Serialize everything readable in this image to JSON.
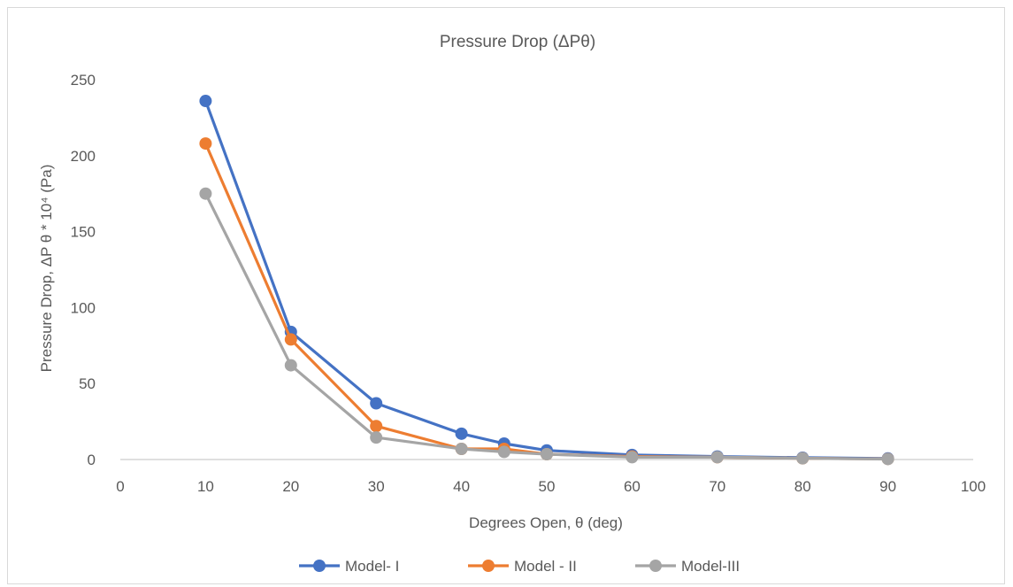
{
  "chart_data": {
    "type": "line",
    "title": "Pressure Drop (ΔPθ)",
    "xlabel": "Degrees Open, θ (deg)",
    "ylabel": "Pressure Drop, ΔP θ * 10⁴ (Pa)",
    "xlim": [
      0,
      100
    ],
    "ylim": [
      0,
      250
    ],
    "x_ticks": [
      0,
      10,
      20,
      30,
      40,
      50,
      60,
      70,
      80,
      90,
      100
    ],
    "y_ticks": [
      0,
      50,
      100,
      150,
      200,
      250
    ],
    "grid": false,
    "legend_position": "bottom",
    "x": [
      10,
      20,
      30,
      40,
      45,
      50,
      60,
      70,
      80,
      90
    ],
    "series": [
      {
        "name": "Model- I",
        "color": "#4472c4",
        "values": [
          236,
          84,
          37,
          17,
          10.5,
          6,
          3,
          2,
          1.2,
          0.7
        ]
      },
      {
        "name": "Model - II",
        "color": "#ed7d31",
        "values": [
          208,
          79,
          22,
          7,
          7,
          3.5,
          2,
          1.5,
          0.8,
          0.4
        ]
      },
      {
        "name": "Model-III",
        "color": "#a5a5a5",
        "values": [
          175,
          62,
          14.5,
          7,
          5,
          3.5,
          1.5,
          1.5,
          0.8,
          0.3
        ]
      }
    ]
  }
}
